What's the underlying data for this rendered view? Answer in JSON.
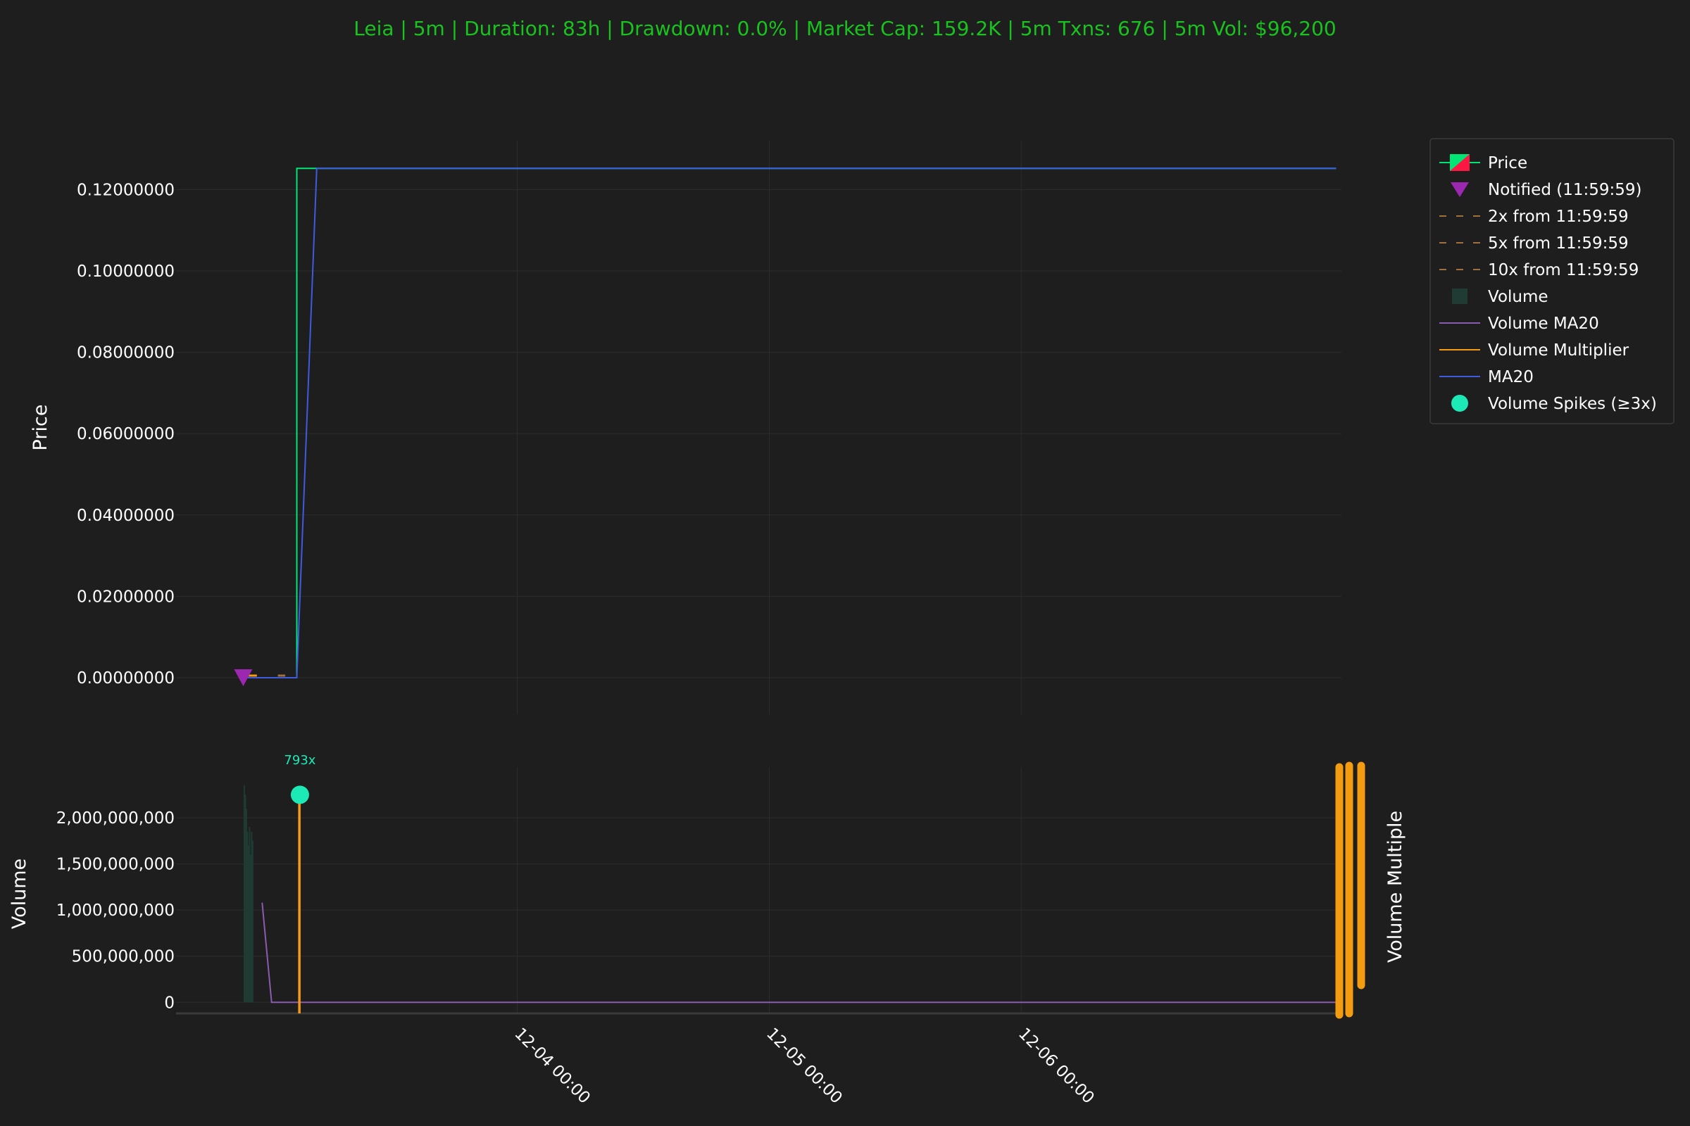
{
  "title": "Leia | 5m | Duration: 83h | Drawdown: 0.0% | Market Cap: 159.2K | 5m Txns: 676 | 5m Vol: $96,200",
  "colors": {
    "background": "#1e1e1e",
    "plot_bg": "#1e1e1e",
    "grid": "#2d2d2d",
    "title": "#19c21f",
    "text": "#ffffff",
    "price_up": "#00e676",
    "price_down": "#ff1744",
    "ma20": "#3f5be0",
    "notified": "#9c27b0",
    "volume_bar": "#1f3b33",
    "volume_ma20": "#8a5bb0",
    "volume_multiplier": "#f39c12",
    "spike": "#1de9b6",
    "target_line": "#a0703a"
  },
  "chart_data": [
    {
      "type": "line",
      "panel": "price",
      "ylabel": "Price",
      "ylim": [
        -0.009,
        0.132
      ],
      "yticks": [
        "0.00000000",
        "0.02000000",
        "0.04000000",
        "0.06000000",
        "0.08000000",
        "0.10000000",
        "0.12000000"
      ],
      "ytick_values": [
        0,
        0.02,
        0.04,
        0.06,
        0.08,
        0.1,
        0.12
      ],
      "x_range_hours": [
        -32.5,
        78.5
      ],
      "xticks": [
        "12-04 00:00",
        "12-05 00:00",
        "12-06 00:00"
      ],
      "xtick_hours": [
        0,
        24,
        48
      ],
      "grid": true,
      "legend_position": "top-right outside",
      "series": [
        {
          "name": "Price",
          "kind": "step",
          "x": [
            -26,
            -21,
            -21,
            78
          ],
          "y": [
            0.0,
            0.0,
            0.1252,
            0.1252
          ]
        },
        {
          "name": "MA20",
          "kind": "line",
          "x": [
            -26,
            -21,
            -19.1,
            78
          ],
          "y": [
            0.0,
            0.0,
            0.1252,
            0.1252
          ]
        },
        {
          "name": "Notified (11:59:59)",
          "kind": "marker",
          "x": [
            -26.1
          ],
          "y": [
            0.0
          ]
        }
      ]
    },
    {
      "type": "bar",
      "panel": "volume",
      "ylabel": "Volume",
      "y2label": "Volume Multiple",
      "ylim": [
        -120000000,
        2550000000
      ],
      "yticks": [
        "0",
        "500,000,000",
        "1,000,000,000",
        "1,500,000,000",
        "2,000,000,000"
      ],
      "ytick_values": [
        0,
        500000000,
        1000000000,
        1500000000,
        2000000000
      ],
      "grid": true,
      "series": [
        {
          "name": "Volume",
          "kind": "bar",
          "x": [
            -26.0,
            -25.9,
            -25.8,
            -25.7,
            -25.6,
            -25.5,
            -25.4,
            -25.3,
            -25.2
          ],
          "y": [
            2350000000,
            2250000000,
            2100000000,
            1850000000,
            1700000000,
            1900000000,
            1600000000,
            1850000000,
            1750000000
          ]
        },
        {
          "name": "Volume MA20",
          "kind": "line",
          "x": [
            -24.3,
            -23.4,
            78
          ],
          "y": [
            1080000000,
            0,
            0
          ]
        },
        {
          "name": "Volume Multiplier",
          "kind": "line",
          "x": [
            -20.8,
            -20.8,
            -20.7,
            -20.7
          ],
          "y": [
            -120000000,
            2250000000,
            2250000000,
            -120000000
          ]
        },
        {
          "name": "Volume Spikes (≥3x)",
          "kind": "marker",
          "x": [
            -20.7
          ],
          "y": [
            2250000000
          ],
          "labels": [
            "793x"
          ]
        }
      ]
    }
  ],
  "legend": [
    {
      "label": "Price",
      "icon": "candle-icon"
    },
    {
      "label": "Notified (11:59:59)",
      "icon": "triangle-down-icon"
    },
    {
      "label": "2x from 11:59:59",
      "icon": "dashed-line-icon"
    },
    {
      "label": "5x from 11:59:59",
      "icon": "dashed-line-icon"
    },
    {
      "label": "10x from 11:59:59",
      "icon": "dashed-line-icon"
    },
    {
      "label": "Volume",
      "icon": "square-icon"
    },
    {
      "label": "Volume MA20",
      "icon": "line-icon"
    },
    {
      "label": "Volume Multiplier",
      "icon": "line-icon"
    },
    {
      "label": "MA20",
      "icon": "line-icon"
    },
    {
      "label": "Volume Spikes (≥3x)",
      "icon": "circle-icon"
    }
  ]
}
